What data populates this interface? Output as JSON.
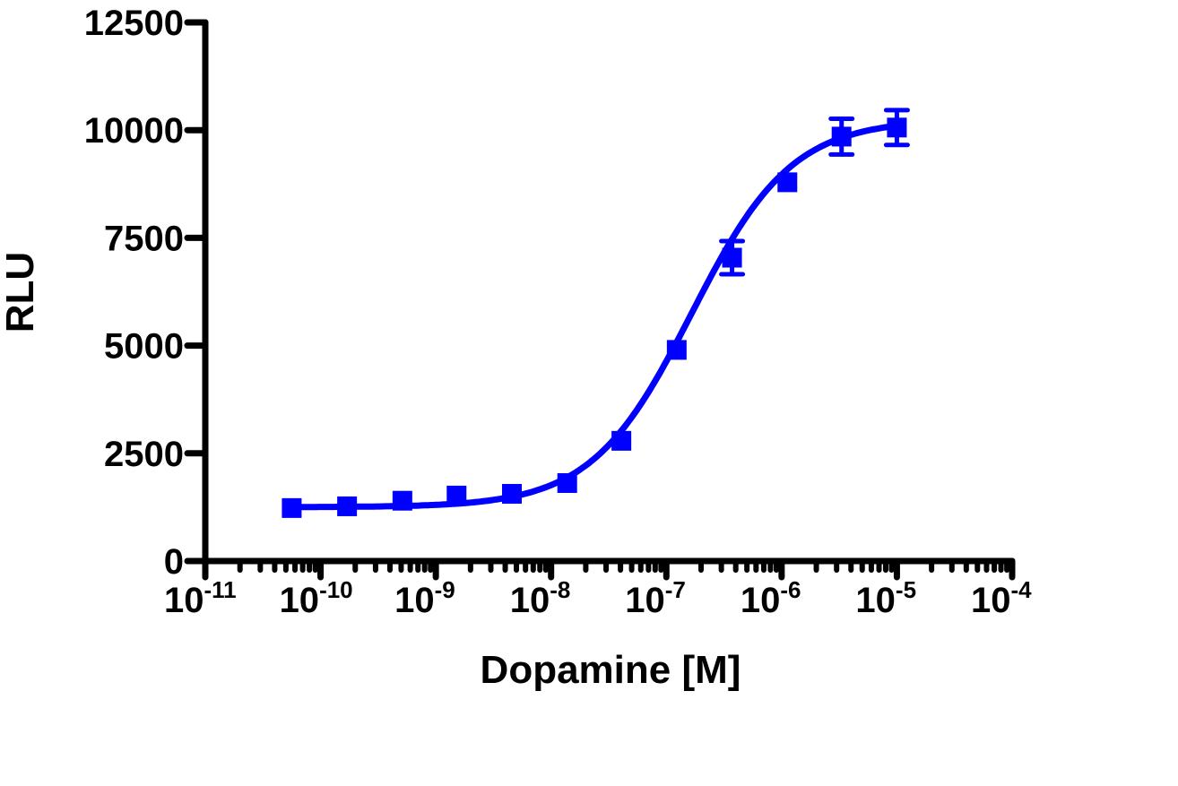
{
  "chart_data": {
    "type": "scatter",
    "subtype": "dose-response with sigmoidal fit",
    "title": "",
    "xlabel": "Dopamine [M]",
    "ylabel": "RLU",
    "xscale": "log",
    "xlim": [
      1e-11,
      0.0001
    ],
    "ylim": [
      0,
      12500
    ],
    "x_ticks": [
      -11,
      -10,
      -9,
      -8,
      -7,
      -6,
      -5,
      -4
    ],
    "x_tick_labels": [
      "10^-11",
      "10^-10",
      "10^-9",
      "10^-8",
      "10^-7",
      "10^-6",
      "10^-5",
      "10^-4"
    ],
    "y_ticks": [
      0,
      2500,
      5000,
      7500,
      10000,
      12500
    ],
    "y_tick_labels": [
      "0",
      "2500",
      "5000",
      "7500",
      "10000",
      "12500"
    ],
    "grid": false,
    "legend": null,
    "marker": "square",
    "color": "#0000ff",
    "series": [
      {
        "name": "Dopamine",
        "x": [
          5.65e-11,
          1.69e-10,
          5.08e-10,
          1.52e-09,
          4.57e-09,
          1.37e-08,
          4.12e-08,
          1.23e-07,
          3.7e-07,
          1.11e-06,
          3.33e-06,
          1e-05
        ],
        "log_x": [
          -10.25,
          -9.77,
          -9.29,
          -8.82,
          -8.34,
          -7.86,
          -7.39,
          -6.91,
          -6.43,
          -5.95,
          -5.48,
          -5.0
        ],
        "y": [
          1230,
          1270,
          1400,
          1520,
          1560,
          1810,
          2790,
          4900,
          7040,
          8790,
          9850,
          10060
        ],
        "error": [
          0,
          0,
          0,
          0,
          0,
          0,
          0,
          0,
          385,
          0,
          415,
          405
        ]
      }
    ],
    "fit": {
      "model": "sigmoidal dose-response",
      "bottom": 1250,
      "top": 10250,
      "log_ec50": -6.78,
      "hill_slope": 1.0
    }
  }
}
